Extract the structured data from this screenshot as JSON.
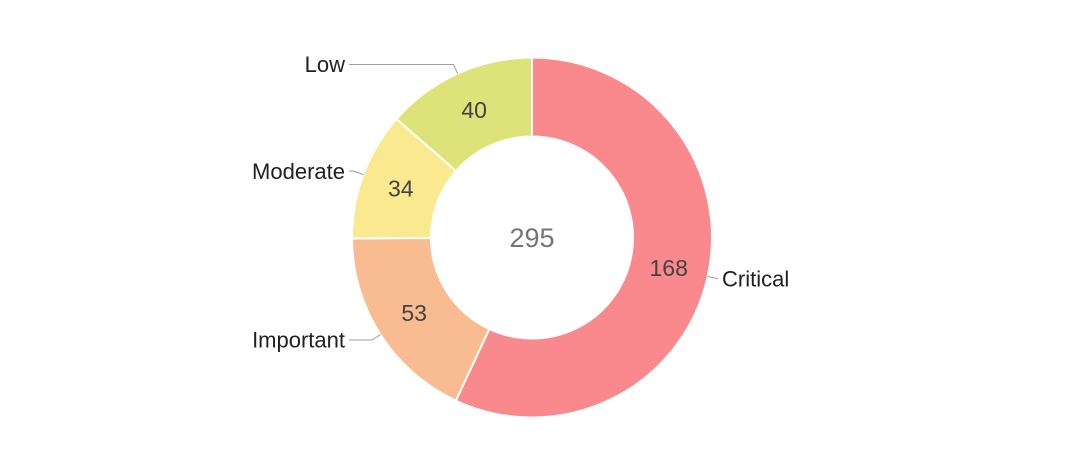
{
  "chart_data": {
    "type": "pie",
    "subtype": "donut",
    "title": "",
    "categories": [
      "Critical",
      "Important",
      "Moderate",
      "Low"
    ],
    "values": [
      168,
      53,
      34,
      40
    ],
    "total": 295,
    "center_total_label": "295",
    "colors": [
      "#F9898C",
      "#F9BB90",
      "#FAE98F",
      "#DEE379"
    ],
    "start_angle_deg": 0,
    "direction": "clockwise",
    "legend_position": "none",
    "labels_style": "outside-with-leader-lines",
    "value_labels_style": "inside-slices"
  },
  "styles": {
    "background": "#FFFFFF",
    "segment_stroke": "#FFFFFF",
    "value_label_color": "#434343",
    "center_label_color": "#757575",
    "category_label_color": "#212121",
    "leader_line_color": "#9E9E9E"
  }
}
